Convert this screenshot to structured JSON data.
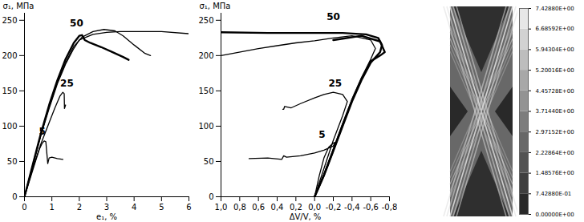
{
  "chart_data": [
    {
      "type": "line",
      "x_label": "e₁, %",
      "y_label": "σ₁, МПа",
      "xlim": [
        0,
        6
      ],
      "xticks": [
        0,
        1,
        2,
        3,
        4,
        5,
        6
      ],
      "ylim": [
        0,
        260
      ],
      "yticks": [
        0,
        50,
        100,
        150,
        200,
        250
      ],
      "grid": false,
      "series": [
        {
          "color": "#000000",
          "line_style": "solid",
          "x": [
            0,
            0.2,
            0.4,
            0.55,
            0.65,
            0.72,
            0.78,
            0.82,
            0.85,
            0.9,
            1.0,
            1.2,
            1.4
          ],
          "values": [
            0,
            25,
            50,
            68,
            76,
            79,
            78,
            60,
            47,
            55,
            56,
            54,
            53
          ]
        },
        {
          "color": "#000000",
          "line_style": "solid",
          "x": [
            0,
            0.3,
            0.6,
            0.9,
            1.1,
            1.3,
            1.4,
            1.45,
            1.46,
            1.5
          ],
          "values": [
            0,
            40,
            75,
            105,
            125,
            143,
            148,
            146,
            125,
            130
          ]
        },
        {
          "color": "#000000",
          "line_style": "thick",
          "x": [
            0,
            0.3,
            0.6,
            0.9,
            1.2,
            1.5,
            1.8,
            2.0,
            2.1,
            2.2,
            2.4,
            2.8,
            3.2,
            3.6,
            3.8
          ],
          "values": [
            0,
            45,
            90,
            130,
            165,
            195,
            218,
            228,
            229,
            222,
            218,
            212,
            205,
            198,
            194
          ]
        },
        {
          "color": "#000000",
          "line_style": "solid",
          "x": [
            0,
            0.3,
            0.6,
            0.9,
            1.2,
            1.5,
            1.8,
            2.1,
            2.5,
            2.9,
            3.3,
            3.6,
            4.0,
            4.4,
            4.6
          ],
          "values": [
            0,
            45,
            88,
            127,
            162,
            190,
            213,
            226,
            234,
            237,
            235,
            228,
            215,
            203,
            200
          ]
        },
        {
          "color": "#000000",
          "line_style": "solid",
          "x": [
            0,
            0.3,
            0.6,
            0.9,
            1.2,
            1.5,
            1.8,
            2.0,
            2.5,
            3.0,
            3.5,
            4.0,
            5.0,
            6.0
          ],
          "values": [
            0,
            44,
            87,
            125,
            160,
            188,
            210,
            222,
            230,
            233,
            234,
            234,
            234,
            231
          ]
        }
      ],
      "annotations": [
        {
          "text": "50",
          "x": 1.9,
          "y": 246
        },
        {
          "text": "25",
          "x": 1.55,
          "y": 160
        },
        {
          "text": "5",
          "x": 0.65,
          "y": 92
        }
      ]
    },
    {
      "type": "line",
      "x_label": "ΔV/V, %",
      "y_label": "σ₁, МПа",
      "xlim": [
        1.0,
        -0.8
      ],
      "xticks": [
        {
          "value": 1.0,
          "label": "1,0"
        },
        {
          "value": 0.8,
          "label": "0,8"
        },
        {
          "value": 0.6,
          "label": "0,6"
        },
        {
          "value": 0.4,
          "label": "0,4"
        },
        {
          "value": 0.2,
          "label": "0,2"
        },
        {
          "value": 0.0,
          "label": "0,0"
        },
        {
          "value": -0.2,
          "label": "-0,2"
        },
        {
          "value": -0.4,
          "label": "-0,4"
        },
        {
          "value": -0.6,
          "label": "-0,6"
        },
        {
          "value": -0.8,
          "label": "-0,8"
        }
      ],
      "ylim": [
        0,
        260
      ],
      "yticks": [
        0,
        50,
        100,
        150,
        200,
        250
      ],
      "grid": false,
      "series": [
        {
          "color": "#000000",
          "line_style": "solid",
          "x": [
            0,
            -0.05,
            -0.1,
            -0.15,
            -0.2,
            -0.22,
            -0.2,
            -0.1,
            0,
            0.15,
            0.3,
            0.33,
            0.35,
            0.5,
            0.7
          ],
          "values": [
            0,
            30,
            55,
            70,
            76,
            77,
            72,
            66,
            62,
            58,
            56,
            58,
            53,
            55,
            54
          ]
        },
        {
          "color": "#000000",
          "line_style": "solid",
          "x": [
            0,
            -0.1,
            -0.2,
            -0.3,
            -0.35,
            -0.3,
            -0.2,
            -0.1,
            0,
            0.15,
            0.25,
            0.32,
            0.33,
            0.34
          ],
          "values": [
            0,
            40,
            80,
            115,
            135,
            145,
            148,
            145,
            140,
            132,
            126,
            128,
            124,
            124
          ]
        },
        {
          "color": "#000000",
          "line_style": "thick",
          "x": [
            0,
            -0.1,
            -0.2,
            -0.3,
            -0.4,
            -0.5,
            -0.6,
            -0.7,
            -0.72,
            -0.68,
            -0.55,
            -0.3,
            0,
            0.5,
            1.0
          ],
          "values": [
            0,
            30,
            65,
            100,
            135,
            165,
            190,
            205,
            215,
            225,
            230,
            232,
            232,
            232,
            233
          ]
        },
        {
          "color": "#000000",
          "line_style": "solid",
          "x": [
            0,
            -0.1,
            -0.2,
            -0.3,
            -0.4,
            -0.5,
            -0.6,
            -0.65,
            -0.6,
            -0.4,
            -0.2,
            0,
            0.2,
            0.4,
            0.6,
            1.0
          ],
          "values": [
            0,
            32,
            68,
            104,
            138,
            168,
            195,
            210,
            222,
            228,
            225,
            221,
            218,
            214,
            210,
            200
          ]
        },
        {
          "color": "#000000",
          "line_style": "thick",
          "x": [
            0,
            -0.1,
            -0.2,
            -0.3,
            -0.4,
            -0.5,
            -0.6,
            -0.7,
            -0.75,
            -0.7,
            -0.5,
            -0.3,
            -0.2
          ],
          "values": [
            0,
            31,
            66,
            102,
            137,
            167,
            192,
            200,
            205,
            220,
            228,
            224,
            222
          ]
        }
      ],
      "annotations": [
        {
          "text": "50",
          "x": -0.2,
          "y": 255
        },
        {
          "text": "25",
          "x": -0.22,
          "y": 160
        },
        {
          "text": "5",
          "x": -0.08,
          "y": 88
        }
      ]
    },
    {
      "type": "contour",
      "colorbar": {
        "range": [
          0,
          7.4288
        ],
        "ticks": [
          {
            "value": 0,
            "label": "0.00000E+00"
          },
          {
            "value": 0.74288,
            "label": "7.42880E-01"
          },
          {
            "value": 1.48576,
            "label": "1.48576E+00"
          },
          {
            "value": 2.22864,
            "label": "2.22864E+00"
          },
          {
            "value": 2.97152,
            "label": "2.97152E+00"
          },
          {
            "value": 3.7144,
            "label": "3.71440E+00"
          },
          {
            "value": 4.45728,
            "label": "4.45728E+00"
          },
          {
            "value": 5.20016,
            "label": "5.20016E+00"
          },
          {
            "value": 5.94304,
            "label": "5.94304E+00"
          },
          {
            "value": 6.68592,
            "label": "6.68592E+00"
          },
          {
            "value": 7.4288,
            "label": "7.42880E+00"
          }
        ]
      }
    }
  ]
}
